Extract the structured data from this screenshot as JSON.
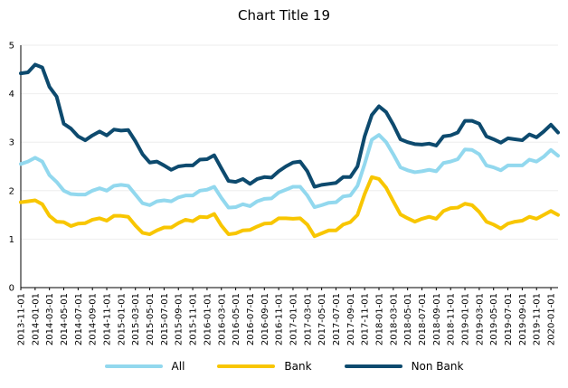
{
  "chart_data": {
    "type": "line",
    "title": "Chart Title 19",
    "xlabel": "",
    "ylabel": "",
    "ylim": [
      0,
      5
    ],
    "yticks": [
      "0",
      "1",
      "2",
      "3",
      "4",
      "5"
    ],
    "grid": true,
    "legend_position": "bottom",
    "x": [
      "2013-11-01",
      "2013-12-01",
      "2014-01-01",
      "2014-02-01",
      "2014-03-01",
      "2014-04-01",
      "2014-05-01",
      "2014-06-01",
      "2014-07-01",
      "2014-08-01",
      "2014-09-01",
      "2014-10-01",
      "2014-11-01",
      "2014-12-01",
      "2015-01-01",
      "2015-02-01",
      "2015-03-01",
      "2015-04-01",
      "2015-05-01",
      "2015-06-01",
      "2015-07-01",
      "2015-08-01",
      "2015-09-01",
      "2015-10-01",
      "2015-11-01",
      "2015-12-01",
      "2016-01-01",
      "2016-02-01",
      "2016-03-01",
      "2016-04-01",
      "2016-05-01",
      "2016-06-01",
      "2016-07-01",
      "2016-08-01",
      "2016-09-01",
      "2016-10-01",
      "2016-11-01",
      "2016-12-01",
      "2017-01-01",
      "2017-02-01",
      "2017-03-01",
      "2017-04-01",
      "2017-05-01",
      "2017-06-01",
      "2017-07-01",
      "2017-08-01",
      "2017-09-01",
      "2017-10-01",
      "2017-11-01",
      "2017-12-01",
      "2018-01-01",
      "2018-02-01",
      "2018-03-01",
      "2018-04-01",
      "2018-05-01",
      "2018-06-01",
      "2018-07-01",
      "2018-08-01",
      "2018-09-01",
      "2018-10-01",
      "2018-11-01",
      "2018-12-01",
      "2019-01-01",
      "2019-02-01",
      "2019-03-01",
      "2019-04-01",
      "2019-05-01",
      "2019-06-01",
      "2019-07-01",
      "2019-08-01",
      "2019-09-01",
      "2019-10-01",
      "2019-11-01",
      "2019-12-01",
      "2020-01-01",
      "2020-02-01"
    ],
    "xtick_labels": [
      "2013-11-01",
      "2014-01-01",
      "2014-03-01",
      "2014-05-01",
      "2014-07-01",
      "2014-09-01",
      "2014-11-01",
      "2015-01-01",
      "2015-03-01",
      "2015-05-01",
      "2015-07-01",
      "2015-09-01",
      "2015-11-01",
      "2016-01-01",
      "2016-03-01",
      "2016-05-01",
      "2016-07-01",
      "2016-09-01",
      "2016-11-01",
      "2017-01-01",
      "2017-03-01",
      "2017-05-01",
      "2017-07-01",
      "2017-09-01",
      "2017-11-01",
      "2018-01-01",
      "2018-03-01",
      "2018-05-01",
      "2018-07-01",
      "2018-09-01",
      "2018-11-01",
      "2019-01-01",
      "2019-03-01",
      "2019-05-01",
      "2019-07-01",
      "2019-09-01",
      "2019-11-01",
      "2020-01-01"
    ],
    "series": [
      {
        "name": "All",
        "color": "#92d8ee",
        "values": [
          2.55,
          2.6,
          2.68,
          2.6,
          2.32,
          2.18,
          2.0,
          1.93,
          1.92,
          1.92,
          2.0,
          2.05,
          2.0,
          2.1,
          2.12,
          2.1,
          1.92,
          1.74,
          1.7,
          1.78,
          1.8,
          1.78,
          1.86,
          1.9,
          1.9,
          2.0,
          2.02,
          2.08,
          1.85,
          1.65,
          1.66,
          1.72,
          1.68,
          1.78,
          1.83,
          1.84,
          1.96,
          2.02,
          2.08,
          2.08,
          1.9,
          1.66,
          1.7,
          1.75,
          1.76,
          1.88,
          1.9,
          2.1,
          2.55,
          3.05,
          3.15,
          3.0,
          2.75,
          2.48,
          2.42,
          2.38,
          2.4,
          2.43,
          2.4,
          2.57,
          2.6,
          2.65,
          2.85,
          2.84,
          2.75,
          2.52,
          2.48,
          2.42,
          2.52,
          2.52,
          2.52,
          2.64,
          2.6,
          2.7,
          2.84,
          2.72
        ]
      },
      {
        "name": "Bank",
        "color": "#f8c600",
        "values": [
          1.76,
          1.78,
          1.8,
          1.72,
          1.48,
          1.36,
          1.35,
          1.27,
          1.32,
          1.33,
          1.4,
          1.43,
          1.38,
          1.48,
          1.48,
          1.46,
          1.28,
          1.13,
          1.1,
          1.18,
          1.24,
          1.24,
          1.33,
          1.4,
          1.37,
          1.46,
          1.45,
          1.52,
          1.28,
          1.1,
          1.12,
          1.18,
          1.19,
          1.26,
          1.32,
          1.33,
          1.43,
          1.43,
          1.42,
          1.43,
          1.3,
          1.06,
          1.12,
          1.18,
          1.18,
          1.3,
          1.35,
          1.5,
          1.93,
          2.28,
          2.24,
          2.06,
          1.78,
          1.51,
          1.43,
          1.36,
          1.42,
          1.46,
          1.42,
          1.58,
          1.64,
          1.65,
          1.73,
          1.7,
          1.56,
          1.36,
          1.3,
          1.22,
          1.32,
          1.36,
          1.38,
          1.46,
          1.42,
          1.5,
          1.58,
          1.5
        ]
      },
      {
        "name": "Non Bank",
        "color": "#0d4a6e",
        "values": [
          4.42,
          4.44,
          4.6,
          4.54,
          4.14,
          3.94,
          3.38,
          3.28,
          3.12,
          3.04,
          3.14,
          3.22,
          3.14,
          3.26,
          3.24,
          3.25,
          3.02,
          2.75,
          2.58,
          2.6,
          2.52,
          2.43,
          2.5,
          2.52,
          2.52,
          2.64,
          2.65,
          2.73,
          2.46,
          2.2,
          2.18,
          2.24,
          2.14,
          2.24,
          2.28,
          2.27,
          2.4,
          2.5,
          2.58,
          2.6,
          2.4,
          2.08,
          2.12,
          2.14,
          2.16,
          2.28,
          2.28,
          2.5,
          3.12,
          3.56,
          3.74,
          3.62,
          3.36,
          3.06,
          3.0,
          2.96,
          2.95,
          2.97,
          2.93,
          3.12,
          3.14,
          3.2,
          3.44,
          3.44,
          3.38,
          3.12,
          3.06,
          2.99,
          3.08,
          3.06,
          3.04,
          3.16,
          3.1,
          3.22,
          3.36,
          3.2
        ]
      }
    ]
  }
}
